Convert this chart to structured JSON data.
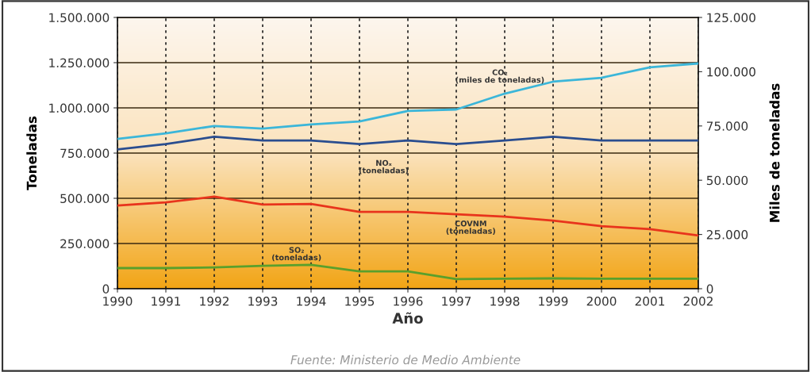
{
  "chart_data": {
    "type": "line",
    "xlabel": "Año",
    "ylabel": "Toneladas",
    "y2label": "Miles de toneladas",
    "x": [
      1990,
      1991,
      1992,
      1993,
      1994,
      1995,
      1996,
      1997,
      1998,
      1999,
      2000,
      2001,
      2002
    ],
    "series": [
      {
        "name": "CO₂\n(miles de toneladas)",
        "color": "#3bb6d9",
        "axis": "y2",
        "values": [
          69000,
          71600,
          75000,
          73800,
          75700,
          77100,
          81900,
          82600,
          89900,
          95400,
          97200,
          102000,
          103800
        ]
      },
      {
        "name": "NOₓ\n(toneladas)",
        "color": "#2a4d8f",
        "values": [
          770000,
          800000,
          840000,
          820000,
          820000,
          800000,
          820000,
          800000,
          820000,
          840000,
          820000,
          820000,
          820000
        ]
      },
      {
        "name": "COVNM\n(toneladas)",
        "color": "#e8341c",
        "values": [
          460000,
          478000,
          509000,
          465000,
          469000,
          425000,
          425000,
          412000,
          399000,
          377000,
          346000,
          329000,
          294000
        ]
      },
      {
        "name": "SO₂\n(toneladas)",
        "color": "#5aa02c",
        "values": [
          114000,
          114000,
          118000,
          127000,
          132000,
          96000,
          96000,
          53000,
          55000,
          57000,
          55000,
          55000,
          55000
        ]
      }
    ],
    "xlim": [
      1990,
      2002
    ],
    "xticks": [
      1990,
      1991,
      1992,
      1993,
      1994,
      1995,
      1996,
      1997,
      1998,
      1999,
      2000,
      2001,
      2002
    ],
    "ylim": [
      0,
      1500000
    ],
    "yticks": [
      {
        "value": 0,
        "label": "0"
      },
      {
        "value": 250000,
        "label": "250.000"
      },
      {
        "value": 500000,
        "label": "500.000"
      },
      {
        "value": 750000,
        "label": "750.000"
      },
      {
        "value": 1000000,
        "label": "1.000.000"
      },
      {
        "value": 1250000,
        "label": "1.250.000"
      },
      {
        "value": 1500000,
        "label": "1.500.000"
      }
    ],
    "y2lim": [
      0,
      125000
    ],
    "y2ticks": [
      {
        "value": 0,
        "label": "0"
      },
      {
        "value": 25000,
        "label": "25.000"
      },
      {
        "value": 50000,
        "label": "50.000"
      },
      {
        "value": 75000,
        "label": "75.000"
      },
      {
        "value": 100000,
        "label": "100.000"
      },
      {
        "value": 125000,
        "label": "125.000"
      }
    ],
    "grid": true,
    "marker": "none",
    "line_style": "solid",
    "legend": false,
    "annotations": [
      "Fuente: Ministerio de Medio Ambiente"
    ]
  }
}
